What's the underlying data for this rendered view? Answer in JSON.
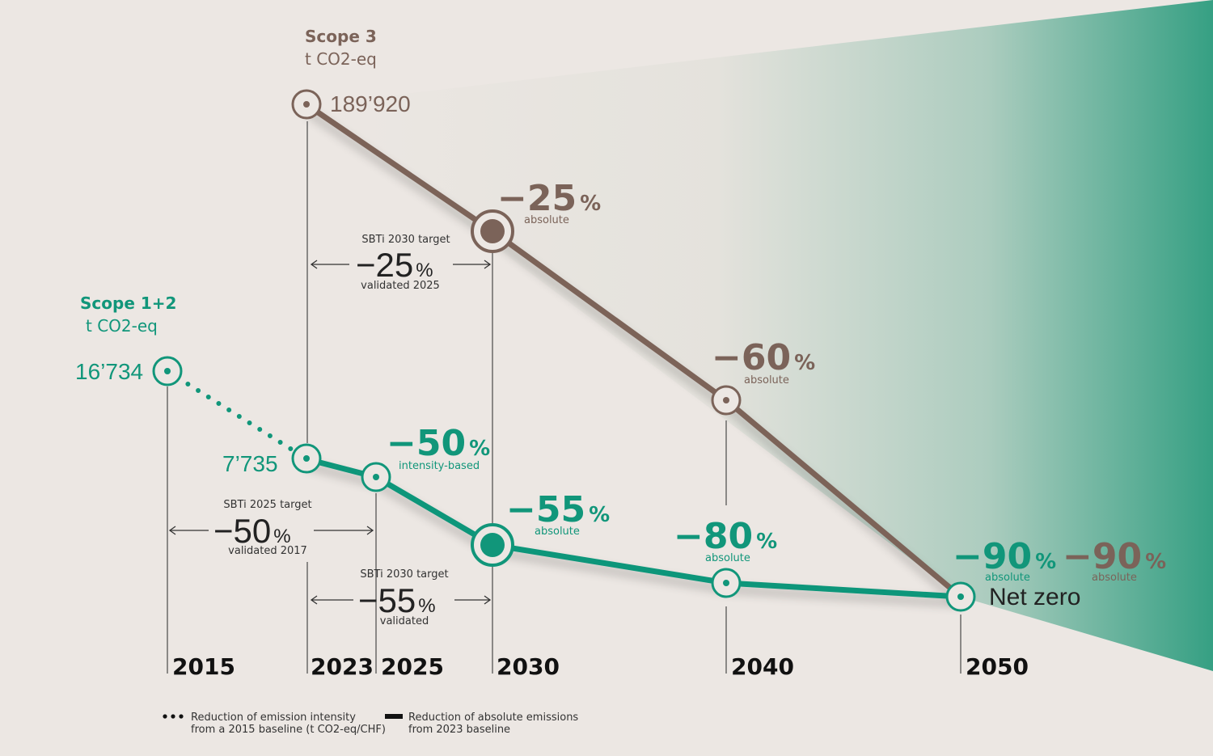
{
  "colors": {
    "scope3": "#7b6359",
    "scope12": "#11967a",
    "background": "#ece7e3",
    "gradient_end": "#2c9c7e",
    "guide": "#555555",
    "text_dark": "#222222"
  },
  "chart_data": {
    "type": "line",
    "title": "",
    "x_ticks": [
      "2015",
      "2023",
      "2025",
      "2030",
      "2040",
      "2050"
    ],
    "series": [
      {
        "id": "scope3",
        "name": "Scope 3",
        "unit": "t CO2-eq",
        "baseline_label": "189’920",
        "points": [
          {
            "year": 2023,
            "reduction_pct": 0,
            "label": "189’920",
            "style": "absolute"
          },
          {
            "year": 2030,
            "reduction_pct": -25,
            "big": "−25",
            "sub": "absolute",
            "highlight": true
          },
          {
            "year": 2040,
            "reduction_pct": -60,
            "big": "−60",
            "sub": "absolute"
          },
          {
            "year": 2050,
            "reduction_pct": -90,
            "big": "−90",
            "sub": "absolute"
          }
        ]
      },
      {
        "id": "scope12",
        "name": "Scope 1+2",
        "unit": "t CO2-eq",
        "baseline_label": "16’734",
        "intensity_points": [
          {
            "year": 2015,
            "label": "16’734"
          },
          {
            "year": 2023,
            "label": "7’735"
          },
          {
            "year": 2025,
            "big": "−50",
            "sub": "intensity-based"
          }
        ],
        "absolute_points": [
          {
            "year": 2023,
            "reduction_pct": 0
          },
          {
            "year": 2025
          },
          {
            "year": 2030,
            "reduction_pct": -55,
            "big": "−55",
            "sub": "absolute",
            "highlight": true
          },
          {
            "year": 2040,
            "reduction_pct": -80,
            "big": "−80",
            "sub": "absolute"
          },
          {
            "year": 2050,
            "reduction_pct": -90,
            "big": "−90",
            "sub": "absolute"
          }
        ]
      }
    ],
    "targets": [
      {
        "id": "sbti2030-scope3",
        "title": "SBTi 2030 target",
        "value": "−25",
        "note": "validated 2025",
        "from": 2023,
        "to": 2030
      },
      {
        "id": "sbti2025-scope12",
        "title": "SBTi 2025 target",
        "value": "−50",
        "note": "validated 2017",
        "from": 2015,
        "to": 2025
      },
      {
        "id": "sbti2030-scope12",
        "title": "SBTi 2030 target",
        "value": "−55",
        "note": "validated",
        "from": 2023,
        "to": 2030
      }
    ],
    "endpoint_label": "Net zero",
    "percent_sign": "%",
    "legend": [
      {
        "style": "dotted",
        "line1": "Reduction of emission intensity",
        "line2": "from a 2015 baseline (t CO2-eq/CHF)"
      },
      {
        "style": "solid",
        "line1": "Reduction of absolute emissions",
        "line2": "from 2023 baseline"
      }
    ]
  }
}
